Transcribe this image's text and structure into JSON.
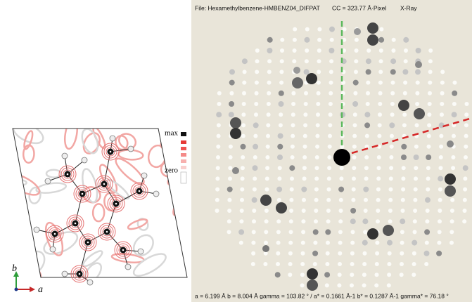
{
  "header": {
    "file": "File: Hexamethylbenzene-HMBENZ04_DIFPAT",
    "cc": "CC = 323.77 Å·Pixel",
    "mode": "X-Ray"
  },
  "footer": "a = 6.199 Å   b = 8.004 Å   gamma = 103.82 °  /  a* = 0.1661 Å-1   b* = 0.1287 Å-1   gamma* = 76.18 °",
  "legend": {
    "max": "max",
    "zero": "zero"
  },
  "axes": {
    "b": "b",
    "a": "a"
  }
}
